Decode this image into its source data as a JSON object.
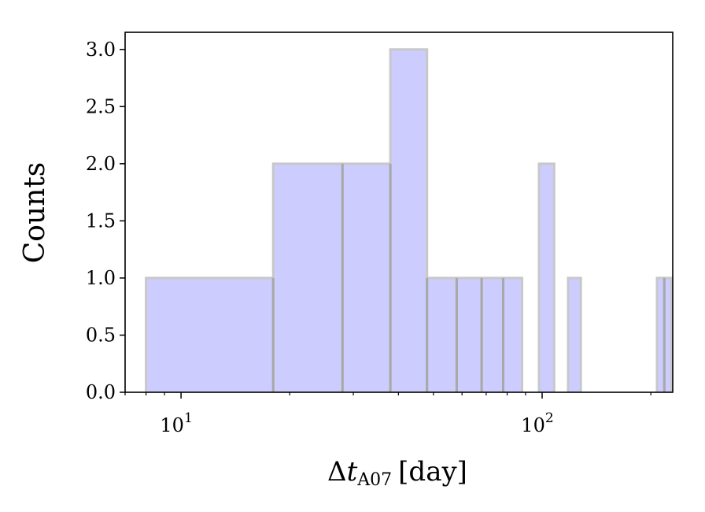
{
  "chart_data": {
    "type": "bar",
    "title": "",
    "xlabel": {
      "prefix": "Δ",
      "var": "t",
      "sub": "A07",
      "unit": "[day]"
    },
    "ylabel": "Counts",
    "x_scale": "log",
    "xlim": [
      7,
      230
    ],
    "ylim": [
      0,
      3.15
    ],
    "yticks": [
      0.0,
      0.5,
      1.0,
      1.5,
      2.0,
      2.5,
      3.0
    ],
    "ytick_labels": [
      "0.0",
      "0.5",
      "1.0",
      "1.5",
      "2.0",
      "2.5",
      "3.0"
    ],
    "xtick_labels": [
      {
        "value": 10,
        "base": "10",
        "exp": "1"
      },
      {
        "value": 100,
        "base": "10",
        "exp": "2"
      }
    ],
    "grid": false,
    "bar_fill": "#ccccff",
    "bar_edge": "#c8c8c8",
    "bars": [
      {
        "x0": 8.0,
        "x1": 18.0,
        "count": 1
      },
      {
        "x0": 18.0,
        "x1": 28.0,
        "count": 2
      },
      {
        "x0": 28.0,
        "x1": 38.0,
        "count": 2
      },
      {
        "x0": 38.0,
        "x1": 48.0,
        "count": 3
      },
      {
        "x0": 48.0,
        "x1": 58.0,
        "count": 1
      },
      {
        "x0": 58.0,
        "x1": 68.0,
        "count": 1
      },
      {
        "x0": 68.0,
        "x1": 78.0,
        "count": 1
      },
      {
        "x0": 78.0,
        "x1": 88.0,
        "count": 1
      },
      {
        "x0": 98.0,
        "x1": 108.0,
        "count": 2
      },
      {
        "x0": 118.0,
        "x1": 128.0,
        "count": 1
      },
      {
        "x0": 208.0,
        "x1": 218.0,
        "count": 1
      },
      {
        "x0": 218.0,
        "x1": 228.0,
        "count": 1
      }
    ]
  }
}
